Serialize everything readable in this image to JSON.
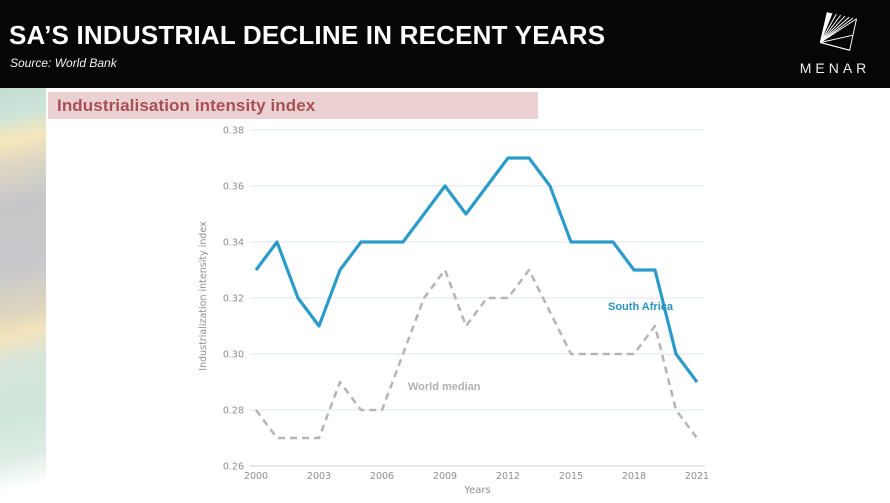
{
  "header": {
    "title": "SA’S INDUSTRIAL DECLINE IN RECENT YEARS",
    "source": "Source: World Bank"
  },
  "logo": {
    "label": "MENAR"
  },
  "banner": {
    "label": "Industrialisation intensity index"
  },
  "chart_data": {
    "type": "line",
    "title": "Industrialisation intensity index",
    "xlabel": "Years",
    "ylabel": "Industrialization intensity index",
    "x": [
      2000,
      2001,
      2002,
      2003,
      2004,
      2005,
      2006,
      2007,
      2008,
      2009,
      2010,
      2011,
      2012,
      2013,
      2014,
      2015,
      2016,
      2017,
      2018,
      2019,
      2020,
      2021
    ],
    "series": [
      {
        "name": "South Africa",
        "color": "#2b9cca",
        "style": "solid",
        "values": [
          0.33,
          0.34,
          0.32,
          0.31,
          0.33,
          0.34,
          0.34,
          0.34,
          0.35,
          0.36,
          0.35,
          0.36,
          0.37,
          0.37,
          0.36,
          0.34,
          0.34,
          0.34,
          0.33,
          0.33,
          0.3,
          0.29
        ]
      },
      {
        "name": "World median",
        "color": "#b5b5b5",
        "style": "dashed",
        "values": [
          0.28,
          0.27,
          0.27,
          0.27,
          0.29,
          0.28,
          0.28,
          0.3,
          0.32,
          0.33,
          0.31,
          0.32,
          0.32,
          0.33,
          0.315,
          0.3,
          0.3,
          0.3,
          0.3,
          0.31,
          0.28,
          0.27
        ]
      }
    ],
    "ylim": [
      0.26,
      0.38
    ],
    "yticks": [
      0.26,
      0.28,
      0.3,
      0.32,
      0.34,
      0.36,
      0.38
    ],
    "xticks": [
      2000,
      2003,
      2006,
      2009,
      2012,
      2015,
      2018,
      2021
    ],
    "grid": true,
    "legend": "inline-labels"
  },
  "colors": {
    "header_bg": "#060606",
    "banner_bg": "#ecd1d3",
    "banner_text": "#a85055",
    "grid_line": "#e2e7eb",
    "axis_line": "#c9ced3",
    "tick_text": "#8f8f8f"
  }
}
